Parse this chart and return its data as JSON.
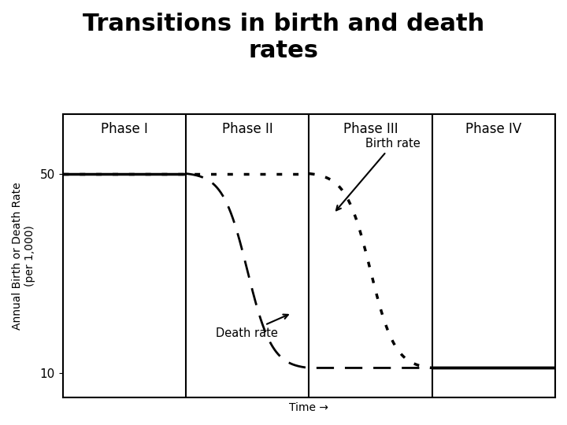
{
  "title": "Transitions in birth and death\nrates",
  "ylabel": "Annual Birth or Death Rate\n(per 1,000)",
  "xlabel": "Time →",
  "phases": [
    "Phase I",
    "Phase II",
    "Phase III",
    "Phase IV"
  ],
  "phase_boundaries": [
    0,
    25,
    50,
    75,
    100
  ],
  "yticks": [
    10,
    50
  ],
  "ylim": [
    5,
    62
  ],
  "xlim": [
    0,
    100
  ],
  "background_color": "#ffffff",
  "line_color": "#000000",
  "birth_rate_annotation": "Birth rate",
  "death_rate_annotation": "Death rate",
  "title_fontsize": 22,
  "label_fontsize": 10,
  "phase_fontsize": 12,
  "ytick_fontsize": 11
}
